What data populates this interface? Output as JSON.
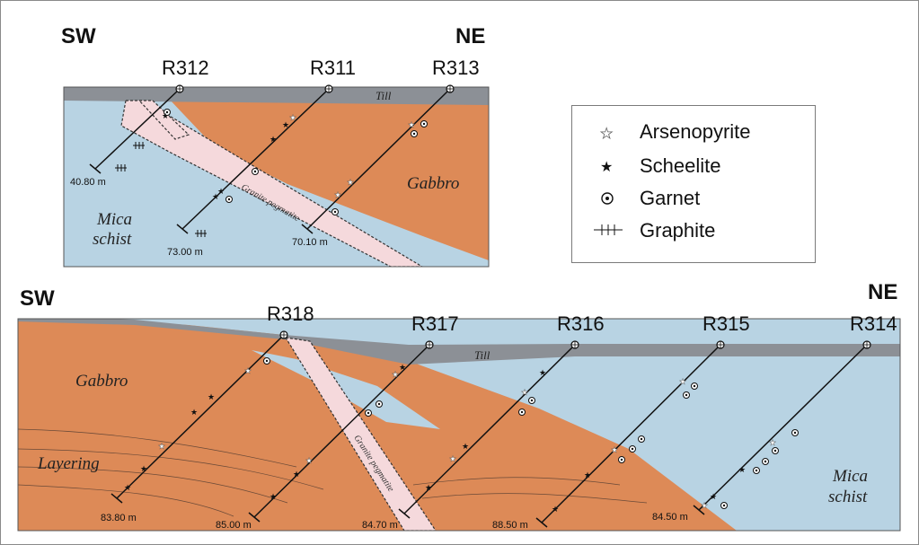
{
  "top_section": {
    "direction_left": "SW",
    "direction_right": "NE",
    "holes": [
      {
        "id": "R312",
        "depth": "40.80 m"
      },
      {
        "id": "R311",
        "depth": "73.00 m"
      },
      {
        "id": "R313",
        "depth": "70.10 m"
      }
    ],
    "labels": {
      "till": "Till",
      "gabbro": "Gabbro",
      "mica_line1": "Mica",
      "mica_line2": "schist",
      "pegmatite": "Granite pegmatite"
    }
  },
  "bottom_section": {
    "direction_left": "SW",
    "direction_right": "NE",
    "holes": [
      {
        "id": "R318",
        "depth": "83.80 m"
      },
      {
        "id": "R317",
        "depth": "85.00 m"
      },
      {
        "id": "R316",
        "depth": "84.70 m"
      },
      {
        "id": "R315",
        "depth": "88.50 m"
      },
      {
        "id": "R314",
        "depth": "84.50 m"
      }
    ],
    "labels": {
      "till": "Till",
      "gabbro": "Gabbro",
      "layering": "Layering",
      "mica_line1": "Mica",
      "mica_line2": "schist",
      "pegmatite": "Granite pegmatite"
    }
  },
  "legend": {
    "items": [
      {
        "label": "Arsenopyrite",
        "icon": "star-outline-icon"
      },
      {
        "label": "Scheelite",
        "icon": "star-filled-icon"
      },
      {
        "label": "Garnet",
        "icon": "dotted-circle-icon"
      },
      {
        "label": "Graphite",
        "icon": "cross-hatch-icon"
      }
    ]
  },
  "colors": {
    "gabbro": "#dd8a57",
    "mica_schist": "#b8d3e3",
    "till": "#8c9096",
    "pegmatite": "#f5d9dc"
  }
}
